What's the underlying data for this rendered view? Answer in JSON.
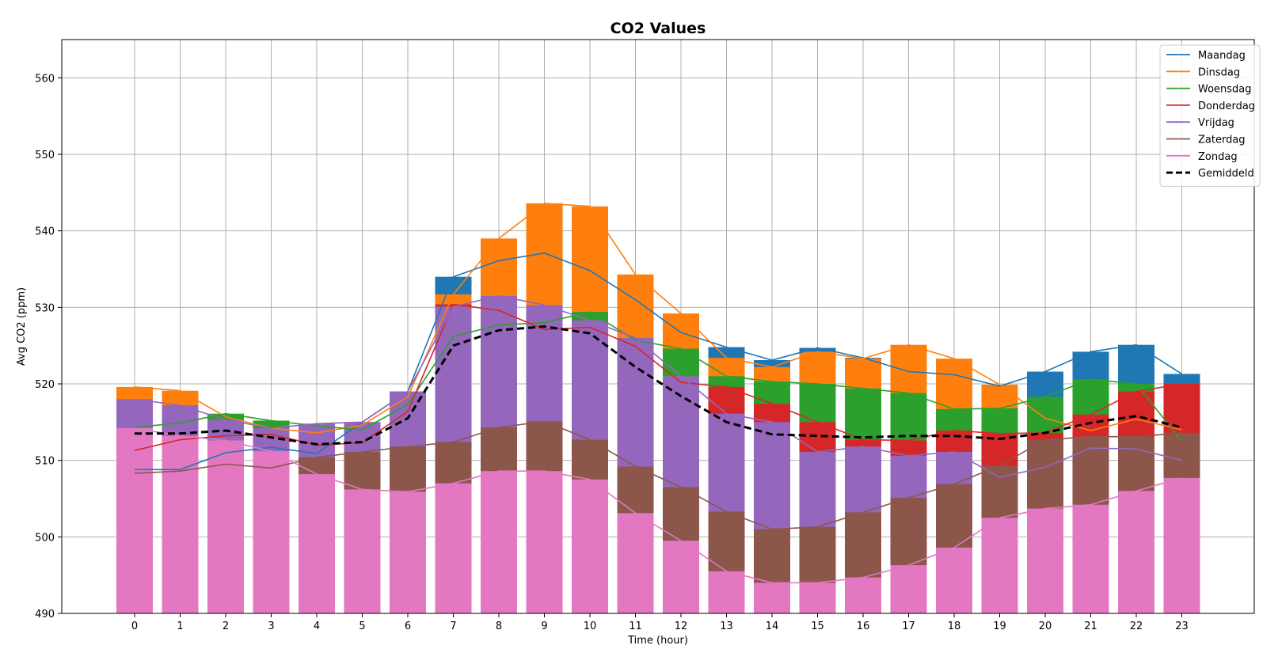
{
  "chart_data": {
    "type": "bar",
    "title": "CO2 Values",
    "xlabel": "Time (hour)",
    "ylabel": "Avg CO2 (ppm)",
    "ylim": [
      490,
      565
    ],
    "yticks": [
      490,
      500,
      510,
      520,
      530,
      540,
      550,
      560
    ],
    "grid": true,
    "legend_position": "top-right",
    "categories": [
      "0",
      "1",
      "2",
      "3",
      "4",
      "5",
      "6",
      "7",
      "8",
      "9",
      "10",
      "11",
      "12",
      "13",
      "14",
      "15",
      "16",
      "17",
      "18",
      "19",
      "20",
      "21",
      "22",
      "23"
    ],
    "series": [
      {
        "name": "Maandag",
        "color": "#1f77b4",
        "values": [
          508.8,
          508.8,
          511.0,
          511.7,
          510.9,
          515.0,
          519.0,
          534.0,
          536.1,
          537.1,
          534.8,
          531.0,
          526.7,
          524.8,
          523.1,
          524.7,
          523.4,
          521.6,
          521.2,
          519.7,
          521.6,
          524.2,
          525.1,
          521.3
        ]
      },
      {
        "name": "Dinsdag",
        "color": "#ff7f0e",
        "values": [
          519.6,
          519.1,
          515.7,
          514.2,
          513.6,
          514.6,
          518.3,
          531.7,
          539.0,
          543.6,
          543.2,
          534.3,
          529.2,
          523.4,
          522.2,
          524.2,
          523.3,
          525.1,
          523.3,
          519.9,
          515.5,
          513.9,
          515.4,
          514.0
        ]
      },
      {
        "name": "Woensdag",
        "color": "#2ca02c",
        "values": [
          514.3,
          514.9,
          516.1,
          515.2,
          514.5,
          514.0,
          517.3,
          526.2,
          527.7,
          528.0,
          529.4,
          525.7,
          524.6,
          521.0,
          520.3,
          520.0,
          519.4,
          518.8,
          516.7,
          516.8,
          518.3,
          520.6,
          520.0,
          512.5
        ]
      },
      {
        "name": "Donderdag",
        "color": "#d62728",
        "values": [
          511.3,
          512.7,
          513.2,
          513.4,
          512.0,
          512.3,
          516.4,
          530.4,
          529.6,
          527.1,
          527.4,
          524.9,
          520.2,
          519.6,
          517.4,
          515.0,
          512.7,
          512.6,
          513.9,
          513.5,
          513.6,
          516.0,
          519.0,
          520.0
        ]
      },
      {
        "name": "Vrijdag",
        "color": "#9467bd",
        "values": [
          518.0,
          517.2,
          515.3,
          514.2,
          514.8,
          515.0,
          519.0,
          530.1,
          531.5,
          530.3,
          528.3,
          526.0,
          521.0,
          516.1,
          515.0,
          511.1,
          511.8,
          510.6,
          511.1,
          507.8,
          509.1,
          511.6,
          511.5,
          510.0
        ]
      },
      {
        "name": "Zaterdag",
        "color": "#8c564b",
        "values": [
          508.3,
          508.6,
          509.5,
          509.0,
          510.4,
          511.1,
          511.8,
          512.4,
          514.3,
          515.1,
          512.7,
          509.2,
          506.5,
          503.3,
          501.0,
          501.3,
          503.2,
          505.1,
          506.9,
          509.3,
          512.7,
          513.1,
          513.1,
          513.6
        ]
      },
      {
        "name": "Zondag",
        "color": "#e377c2",
        "values": [
          514.2,
          513.2,
          512.6,
          511.2,
          508.2,
          506.2,
          505.9,
          507.0,
          508.6,
          508.6,
          507.5,
          503.1,
          499.5,
          495.5,
          494.0,
          494.0,
          494.7,
          496.3,
          498.6,
          502.5,
          503.7,
          504.2,
          506.0,
          507.7
        ]
      }
    ],
    "average": {
      "name": "Gemiddeld",
      "color": "#000000",
      "values": [
        513.5,
        513.5,
        513.9,
        513.0,
        512.1,
        512.4,
        515.5,
        525.0,
        527.0,
        527.5,
        526.6,
        522.2,
        518.4,
        515.0,
        513.4,
        513.2,
        513.0,
        513.2,
        513.2,
        512.8,
        513.6,
        514.9,
        515.8,
        514.3
      ]
    }
  }
}
